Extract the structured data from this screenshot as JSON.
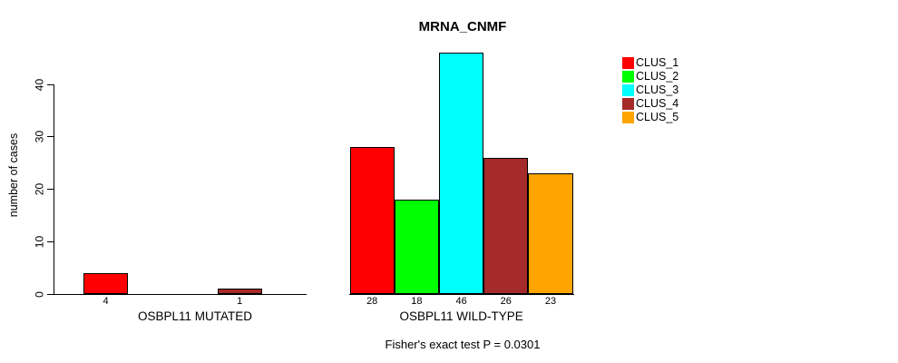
{
  "chart_data": {
    "type": "bar",
    "title": "MRNA_CNMF",
    "ylabel": "number of cases",
    "xlabel": "",
    "footnote": "Fisher's exact test P = 0.0301",
    "ylim": [
      0,
      46
    ],
    "yticks": [
      0,
      10,
      20,
      30,
      40
    ],
    "grid": false,
    "legend_position": "top-right",
    "legend": [
      {
        "name": "CLUS_1",
        "color": "#FF0000"
      },
      {
        "name": "CLUS_2",
        "color": "#00FF00"
      },
      {
        "name": "CLUS_3",
        "color": "#00FFFF"
      },
      {
        "name": "CLUS_4",
        "color": "#A52A2A"
      },
      {
        "name": "CLUS_5",
        "color": "#FFA500"
      }
    ],
    "groups": [
      {
        "label": "OSBPL11 MUTATED",
        "values": [
          4,
          0,
          0,
          1,
          0
        ]
      },
      {
        "label": "OSBPL11 WILD-TYPE",
        "values": [
          28,
          18,
          46,
          26,
          23
        ]
      }
    ]
  }
}
